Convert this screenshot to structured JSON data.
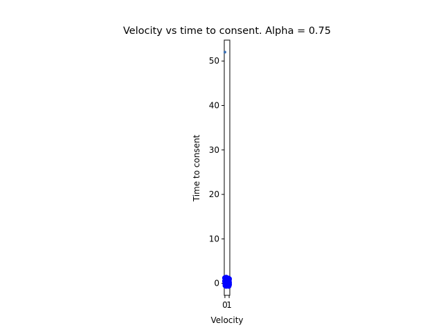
{
  "chart_data": {
    "type": "scatter",
    "title": "Velocity vs time to consent. Alpha = 0.75",
    "xlabel": "Velocity",
    "ylabel": "Time to consent",
    "xlim": [
      -0.15,
      1.15
    ],
    "ylim": [
      -2.7,
      54.7
    ],
    "xticks": [
      0,
      1
    ],
    "yticks": [
      0,
      10,
      20,
      30,
      40,
      50
    ],
    "grid": false,
    "series": [
      {
        "color": "#3b6fb0",
        "marker_size": 2,
        "points": [
          [
            0.0,
            52.0
          ]
        ]
      },
      {
        "color": "#0000ff",
        "marker_size": 4,
        "points": [
          [
            0.0,
            1.2
          ],
          [
            0.1,
            1.1
          ],
          [
            0.2,
            1.0
          ],
          [
            0.3,
            1.3
          ],
          [
            0.4,
            0.9
          ],
          [
            0.5,
            1.2
          ],
          [
            0.6,
            1.0
          ],
          [
            0.7,
            0.8
          ],
          [
            0.8,
            1.1
          ],
          [
            0.9,
            0.9
          ],
          [
            1.0,
            1.0
          ],
          [
            0.0,
            0.5
          ],
          [
            0.15,
            0.6
          ],
          [
            0.35,
            0.4
          ],
          [
            0.55,
            0.5
          ],
          [
            0.75,
            0.6
          ],
          [
            0.95,
            0.5
          ],
          [
            0.05,
            0.0
          ],
          [
            0.25,
            -0.1
          ],
          [
            0.45,
            0.1
          ],
          [
            0.65,
            0.0
          ],
          [
            0.85,
            -0.1
          ],
          [
            1.0,
            0.1
          ],
          [
            0.1,
            -0.5
          ],
          [
            0.3,
            -0.6
          ],
          [
            0.5,
            -0.4
          ],
          [
            0.7,
            -0.5
          ],
          [
            0.9,
            -0.6
          ],
          [
            1.0,
            -0.3
          ]
        ]
      }
    ]
  }
}
